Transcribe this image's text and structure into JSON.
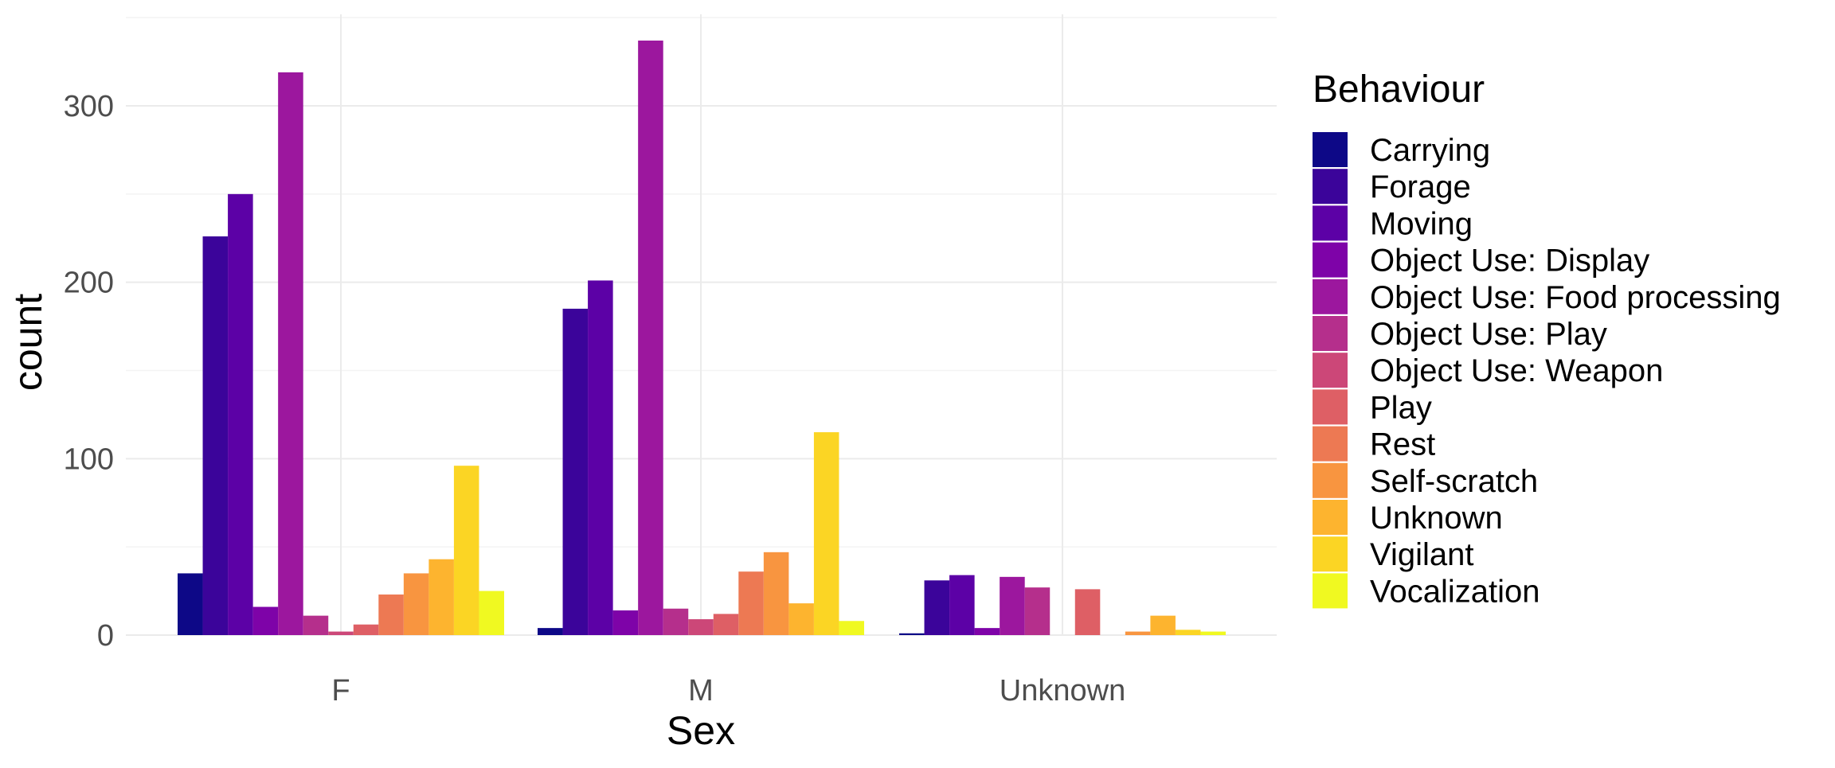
{
  "chart_data": {
    "type": "bar",
    "title": "",
    "xlabel": "Sex",
    "ylabel": "count",
    "categories": [
      "F",
      "M",
      "Unknown"
    ],
    "ylim": [
      0,
      350
    ],
    "yticks": [
      0,
      100,
      200,
      300
    ],
    "grid": true,
    "legend": {
      "title": "Behaviour",
      "position": "right"
    },
    "series": [
      {
        "name": "Carrying",
        "color": "#0d0887",
        "values": [
          35,
          4,
          1
        ]
      },
      {
        "name": "Forage",
        "color": "#3b049a",
        "values": [
          226,
          185,
          31
        ]
      },
      {
        "name": "Moving",
        "color": "#5c01a6",
        "values": [
          250,
          201,
          34
        ]
      },
      {
        "name": "Object Use: Display",
        "color": "#7e03a8",
        "values": [
          16,
          14,
          4
        ]
      },
      {
        "name": "Object Use: Food processing",
        "color": "#9c179e",
        "values": [
          319,
          337,
          33
        ]
      },
      {
        "name": "Object Use: Play",
        "color": "#b52f8c",
        "values": [
          11,
          15,
          27
        ]
      },
      {
        "name": "Object Use: Weapon",
        "color": "#cc4778",
        "values": [
          2,
          9,
          0
        ]
      },
      {
        "name": "Play",
        "color": "#de5f65",
        "values": [
          6,
          12,
          26
        ]
      },
      {
        "name": "Rest",
        "color": "#ed7953",
        "values": [
          23,
          36,
          0
        ]
      },
      {
        "name": "Self-scratch",
        "color": "#f89540",
        "values": [
          35,
          47,
          2
        ]
      },
      {
        "name": "Unknown",
        "color": "#fdb42f",
        "values": [
          43,
          18,
          11
        ]
      },
      {
        "name": "Vigilant",
        "color": "#fbd524",
        "values": [
          96,
          115,
          3
        ]
      },
      {
        "name": "Vocalization",
        "color": "#f0f921",
        "values": [
          25,
          8,
          2
        ]
      }
    ]
  }
}
